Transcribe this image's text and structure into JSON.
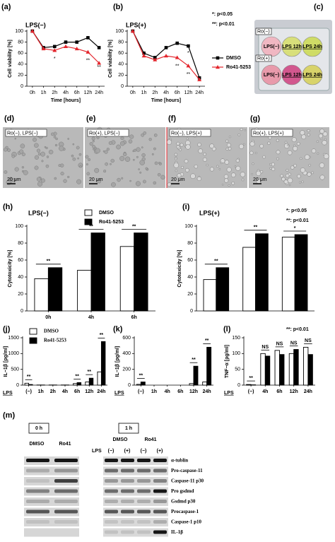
{
  "chart_data": [
    {
      "type": "line",
      "panel": "(a)",
      "title": "LPS(−)",
      "xlabel": "Time [hours]",
      "ylabel": "Cell viability [%]",
      "categories": [
        "0h",
        "1h",
        "2h",
        "4h",
        "6h",
        "12h",
        "24h"
      ],
      "series": [
        {
          "color": "#000000",
          "marker": "square",
          "values": [
            100,
            70,
            72,
            80,
            80,
            88,
            70
          ]
        },
        {
          "color": "#e3242b",
          "marker": "triangle",
          "values": [
            100,
            68,
            65,
            72,
            68,
            62,
            42
          ]
        }
      ],
      "ylim": [
        0,
        100
      ],
      "yticks": [
        0,
        20,
        40,
        60,
        80,
        100
      ],
      "annotations": [
        "*",
        "**",
        "**"
      ]
    },
    {
      "type": "line",
      "panel": "(b)",
      "title": "LPS(+)",
      "xlabel": "Time [hours]",
      "ylabel": "Cell viability [%]",
      "categories": [
        "0h",
        "1h",
        "2h",
        "4h",
        "6h",
        "12h",
        "24h"
      ],
      "series": [
        {
          "name": "DMSO",
          "color": "#000000",
          "marker": "square",
          "values": [
            100,
            60,
            52,
            70,
            78,
            73,
            15
          ]
        },
        {
          "name": "Ro41-5253",
          "color": "#e3242b",
          "marker": "triangle",
          "values": [
            100,
            55,
            48,
            55,
            52,
            37,
            12
          ]
        }
      ],
      "ylim": [
        0,
        100
      ],
      "yticks": [
        0,
        20,
        40,
        60,
        80,
        100
      ],
      "annotations": [
        "**",
        "*",
        "**"
      ],
      "notes": [
        "*: p<0.05",
        "**: p<0.01"
      ]
    },
    {
      "type": "bar",
      "panel": "(h)",
      "title": "LPS(−)",
      "ylabel": "Cytotoxicity [%]",
      "categories": [
        "0h",
        "4h",
        "6h"
      ],
      "series": [
        {
          "name": "DMSO",
          "color": "#ffffff",
          "values": [
            38,
            48,
            76
          ]
        },
        {
          "name": "Ro41-5253",
          "color": "#000000",
          "values": [
            51,
            92,
            92
          ]
        }
      ],
      "ylim": [
        0,
        100
      ],
      "yticks": [
        0,
        20,
        40,
        60,
        80,
        100
      ],
      "annotations": [
        "**",
        "**",
        "**"
      ]
    },
    {
      "type": "bar",
      "panel": "(i)",
      "title": "LPS(+)",
      "ylabel": "Cytotoxicity [%]",
      "categories": [
        null,
        null,
        null
      ],
      "series": [
        {
          "color": "#ffffff",
          "values": [
            37,
            75,
            87
          ]
        },
        {
          "color": "#000000",
          "values": [
            51,
            91,
            90
          ]
        }
      ],
      "ylim": [
        0,
        100
      ],
      "yticks": [
        0,
        20,
        40,
        60,
        80,
        100
      ],
      "annotations": [
        "**",
        "**",
        "*"
      ],
      "notes": [
        "*: p<0.05",
        "**: p<0.01"
      ]
    },
    {
      "type": "bar",
      "panel": "(j)",
      "ylabel": "IL−1β [pg/ml]",
      "row_label": "LPS",
      "categories": [
        "(−)",
        "1h",
        "2h",
        "4h",
        "6h",
        "12h",
        "24h"
      ],
      "series": [
        {
          "name": "DMSO",
          "color": "#ffffff",
          "values": [
            60,
            5,
            5,
            5,
            50,
            100,
            420
          ]
        },
        {
          "name": "Ro41-5253",
          "color": "#000000",
          "values": [
            20,
            5,
            5,
            5,
            80,
            220,
            1380
          ]
        }
      ],
      "ylim": [
        0,
        1500
      ],
      "yticks": [
        0,
        500,
        1000,
        1500
      ],
      "annotations": [
        "**",
        "**",
        "**",
        "**"
      ]
    },
    {
      "type": "bar",
      "panel": "(k)",
      "ylabel": "IL−1β [pg/ml]",
      "row_label": "LPS",
      "categories": [
        "(−)",
        "1h",
        "4h",
        "6h",
        "12h",
        "24h"
      ],
      "series": [
        {
          "color": "#ffffff",
          "values": [
            10,
            0,
            0,
            0,
            20,
            40
          ]
        },
        {
          "color": "#000000",
          "values": [
            40,
            0,
            0,
            0,
            240,
            480
          ]
        }
      ],
      "ylim": [
        0,
        600
      ],
      "yticks": [
        0,
        200,
        400,
        600
      ],
      "annotations": [
        "**",
        "**",
        "**"
      ]
    },
    {
      "type": "bar",
      "panel": "(l)",
      "ylabel": "TNF−α [pg/ml]",
      "row_label": "LPS",
      "categories": [
        "(−)",
        "4h",
        "6h",
        "12h",
        "24h"
      ],
      "series": [
        {
          "color": "#ffffff",
          "values": [
            2,
            100,
            110,
            100,
            120
          ]
        },
        {
          "color": "#000000",
          "values": [
            1,
            92,
            97,
            113,
            97
          ]
        }
      ],
      "ylim": [
        0,
        150
      ],
      "yticks": [
        0,
        50,
        100,
        150
      ],
      "annotations": [
        "**",
        "NS",
        "NS",
        "NS",
        "NS"
      ],
      "notes": [
        "**: p<0.01"
      ]
    }
  ],
  "plate": {
    "panel": "(c)",
    "row_labels": [
      "Ro(−)",
      "Ro(+)"
    ],
    "col_labels": [
      "LPS(−)",
      "LPS 12h",
      "LPS 24h"
    ]
  },
  "micrographs": [
    {
      "panel": "(d)",
      "label": "Ro(−), LPS(−)",
      "scale": "20 μm"
    },
    {
      "panel": "(e)",
      "label": "Ro(+), LPS(−)",
      "scale": "20 μm"
    },
    {
      "panel": "(f)",
      "label": "Ro(−), LPS(+)",
      "scale": "20 μm"
    },
    {
      "panel": "(g)",
      "label": "Ro(+), LPS(+)",
      "scale": "20 μm"
    }
  ],
  "blot": {
    "panel": "(m)",
    "time_headers": [
      "0 h",
      "1 h"
    ],
    "groups": [
      "DMSO",
      "Ro41",
      "DMSO",
      "Ro41"
    ],
    "lps_label": "LPS",
    "lps_states": [
      "(−)",
      "(+)",
      "(−)",
      "(+)"
    ],
    "rows": [
      "α-tublin",
      "Pro-caspase-11",
      "Caspase-11 p30",
      "Pro gsdmd",
      "Gsdmd p30",
      "Procaspase-1",
      "Caspase-1 p10",
      "IL-1β"
    ]
  }
}
